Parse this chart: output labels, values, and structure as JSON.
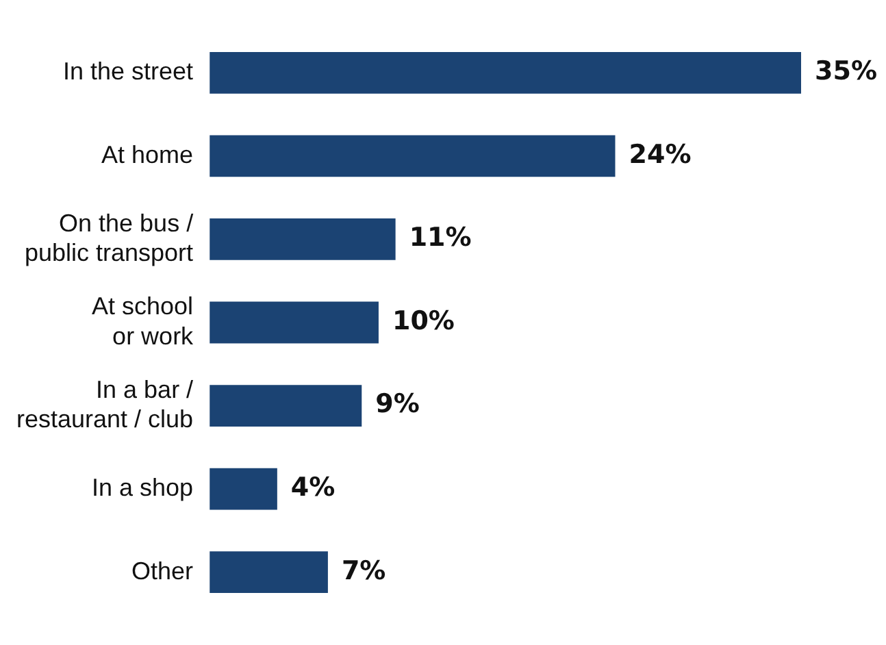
{
  "chart_data": {
    "type": "bar",
    "orientation": "horizontal",
    "categories": [
      "In the street",
      "At home",
      "On the bus / public transport",
      "At school or work",
      "In a bar / restaurant / club",
      "In a shop",
      "Other"
    ],
    "values": [
      35,
      24,
      11,
      10,
      9,
      4,
      7
    ],
    "value_labels": [
      "35%",
      "24%",
      "11%",
      "10%",
      "9%",
      "4%",
      "7%"
    ],
    "color": "#1b4373",
    "xlim": [
      0,
      35
    ],
    "tick_labels": "y",
    "legend": false
  }
}
